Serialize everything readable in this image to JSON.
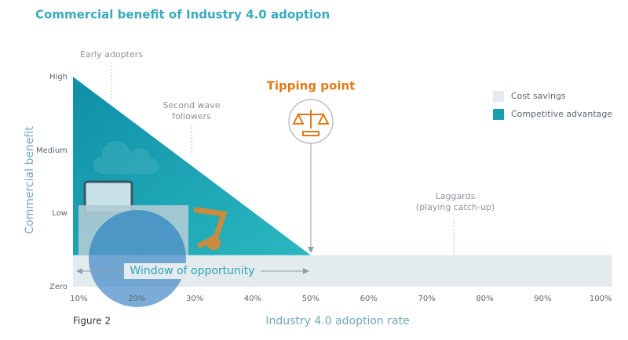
{
  "chart_data": {
    "type": "area",
    "title": "Commercial benefit of Industry 4.0 adoption",
    "figure_label": "Figure 2",
    "x_label": "Industry 4.0 adoption rate",
    "y_label": "Commercial benefit",
    "xlim": [
      9,
      102
    ],
    "xticks": [
      {
        "value": 10,
        "label": "10%"
      },
      {
        "value": 20,
        "label": "20%"
      },
      {
        "value": 30,
        "label": "30%"
      },
      {
        "value": 40,
        "label": "40%"
      },
      {
        "value": 50,
        "label": "50%"
      },
      {
        "value": 60,
        "label": "60%"
      },
      {
        "value": 70,
        "label": "70%"
      },
      {
        "value": 80,
        "label": "80%"
      },
      {
        "value": 90,
        "label": "90%"
      },
      {
        "value": 100,
        "label": "100%"
      }
    ],
    "ylim": [
      0,
      100
    ],
    "yticks": [
      {
        "value": 0,
        "label": "Zero"
      },
      {
        "value": 35,
        "label": "Low"
      },
      {
        "value": 65,
        "label": "Medium"
      },
      {
        "value": 100,
        "label": "High"
      }
    ],
    "series": [
      {
        "name": "Cost savings",
        "color": "#e4ebee",
        "x": [
          9,
          102
        ],
        "values": [
          15,
          15
        ]
      },
      {
        "name": "Competitive advantage",
        "color": "#1a9fb2",
        "x": [
          9,
          50
        ],
        "values": [
          100,
          15
        ]
      }
    ],
    "legend": "top-right",
    "annotations": [
      "Early adopters",
      "Second wave followers",
      "Tipping point",
      "Laggards (playing catch-up)",
      "Window of opportunity"
    ]
  }
}
